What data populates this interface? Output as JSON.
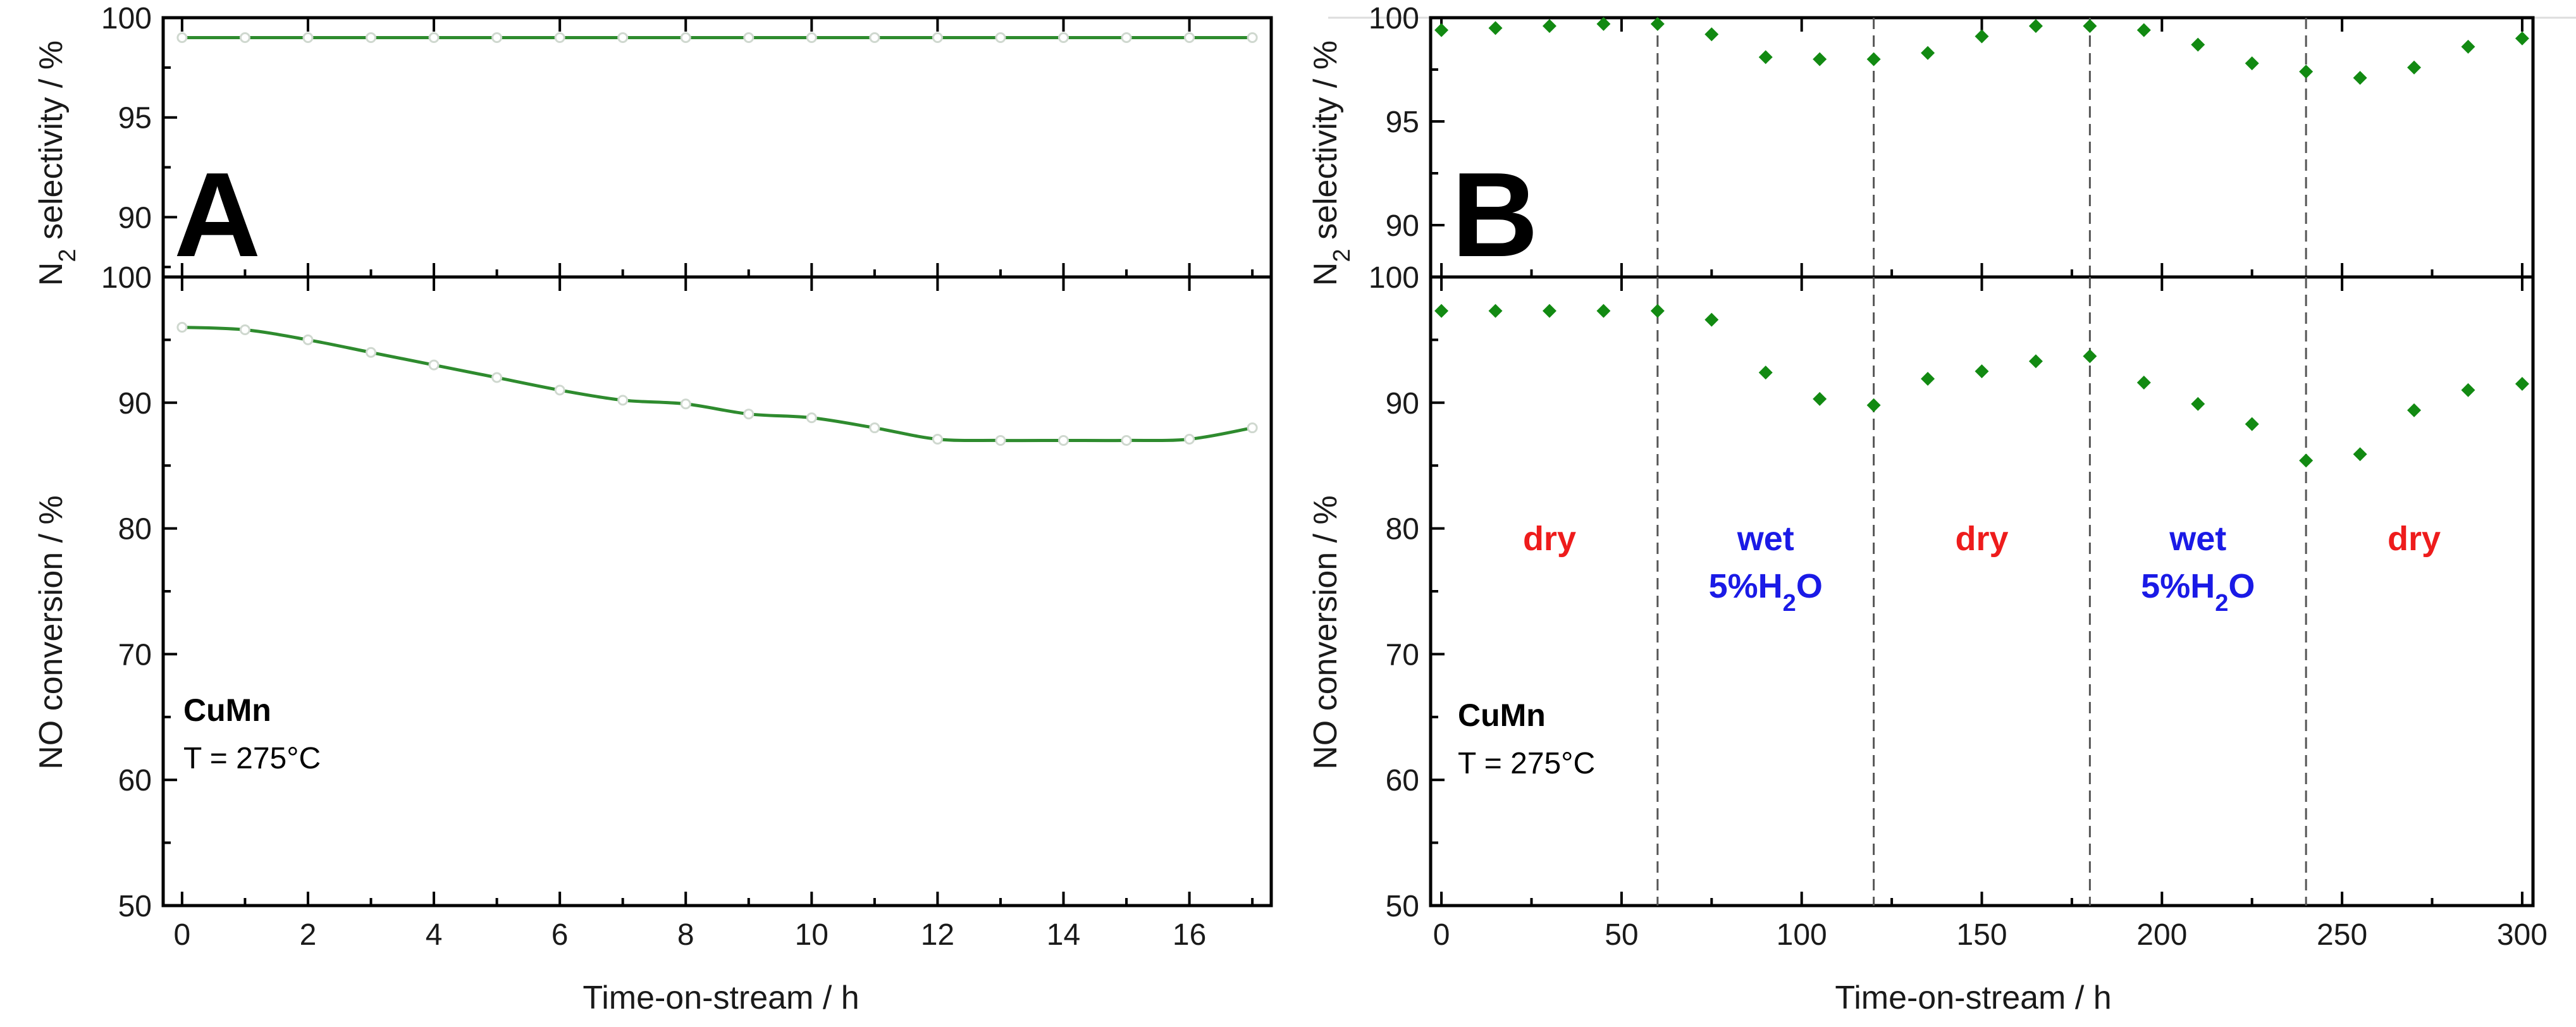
{
  "chart_data": [
    {
      "panel": "A",
      "type": "line",
      "sample": "CuMn",
      "condition": "T = 275°C",
      "xlabel": "Time-on-stream / h",
      "xlim": [
        -0.3,
        17.3
      ],
      "xticks": [
        0,
        2,
        4,
        6,
        8,
        10,
        12,
        14,
        16
      ],
      "series_color": "#2e8b2e",
      "top": {
        "ylabel_main": "N",
        "ylabel_sub": "2",
        "ylabel_rest": " selectivity / %",
        "ylim": [
          87,
          100
        ],
        "yticks": [
          90,
          95,
          100
        ],
        "x": [
          0,
          1,
          2,
          3,
          4,
          5,
          6,
          7,
          8,
          9,
          10,
          11,
          12,
          13,
          14,
          15,
          16,
          17
        ],
        "values": [
          99,
          99,
          99,
          99,
          99,
          99,
          99,
          99,
          99,
          99,
          99,
          99,
          99,
          99,
          99,
          99,
          99,
          99
        ]
      },
      "bottom": {
        "ylabel": "NO conversion / %",
        "ylim": [
          50,
          100
        ],
        "yticks": [
          50,
          60,
          70,
          80,
          90,
          100
        ],
        "x": [
          0,
          1,
          2,
          3,
          4,
          5,
          6,
          7,
          8,
          9,
          10,
          11,
          12,
          13,
          14,
          15,
          16,
          17
        ],
        "values": [
          96,
          95.8,
          95,
          94,
          93,
          92,
          91,
          90.2,
          89.9,
          89.1,
          88.8,
          88,
          87.1,
          87,
          87,
          87,
          87.1,
          88
        ]
      }
    },
    {
      "panel": "B",
      "type": "scatter",
      "sample": "CuMn",
      "condition": "T = 275°C",
      "xlabel": "Time-on-stream / h",
      "xlim": [
        -3,
        303
      ],
      "xticks": [
        0,
        50,
        100,
        150,
        200,
        250,
        300
      ],
      "series_color": "#128a12",
      "dividers": [
        60,
        120,
        180,
        240
      ],
      "regions": [
        {
          "label": "dry",
          "sub": "",
          "color": "#ee1c1c",
          "x": 30
        },
        {
          "label": "wet",
          "sub": "5%H2O",
          "color": "#1a1ae6",
          "x": 90
        },
        {
          "label": "dry",
          "sub": "",
          "color": "#ee1c1c",
          "x": 150
        },
        {
          "label": "wet",
          "sub": "5%H2O",
          "color": "#1a1ae6",
          "x": 210
        },
        {
          "label": "dry",
          "sub": "",
          "color": "#ee1c1c",
          "x": 270
        }
      ],
      "wet_sub": {
        "pre": "5%H",
        "sub": "2",
        "post": "O"
      },
      "top": {
        "ylabel_main": "N",
        "ylabel_sub": "2",
        "ylabel_rest": " selectivity / %",
        "ylim": [
          87.5,
          100
        ],
        "yticks": [
          90,
          95,
          100
        ],
        "x": [
          0,
          15,
          30,
          45,
          60,
          75,
          90,
          105,
          120,
          135,
          150,
          165,
          180,
          195,
          210,
          225,
          240,
          255,
          270,
          285,
          300
        ],
        "values": [
          99.4,
          99.5,
          99.6,
          99.7,
          99.7,
          99.2,
          98.1,
          98.0,
          98.0,
          98.3,
          99.1,
          99.6,
          99.6,
          99.4,
          98.7,
          97.8,
          97.4,
          97.1,
          97.6,
          98.6,
          99.0
        ]
      },
      "bottom": {
        "ylabel": "NO conversion / %",
        "ylim": [
          50,
          100
        ],
        "yticks": [
          50,
          60,
          70,
          80,
          90,
          100
        ],
        "x": [
          0,
          15,
          30,
          45,
          60,
          75,
          90,
          105,
          120,
          135,
          150,
          165,
          180,
          195,
          210,
          225,
          240,
          255,
          270,
          285,
          300
        ],
        "values": [
          97.3,
          97.3,
          97.3,
          97.3,
          97.3,
          96.6,
          92.4,
          90.3,
          89.8,
          91.9,
          92.5,
          93.3,
          93.7,
          91.6,
          89.9,
          88.3,
          85.4,
          85.9,
          89.4,
          91.0,
          91.5
        ]
      }
    }
  ]
}
